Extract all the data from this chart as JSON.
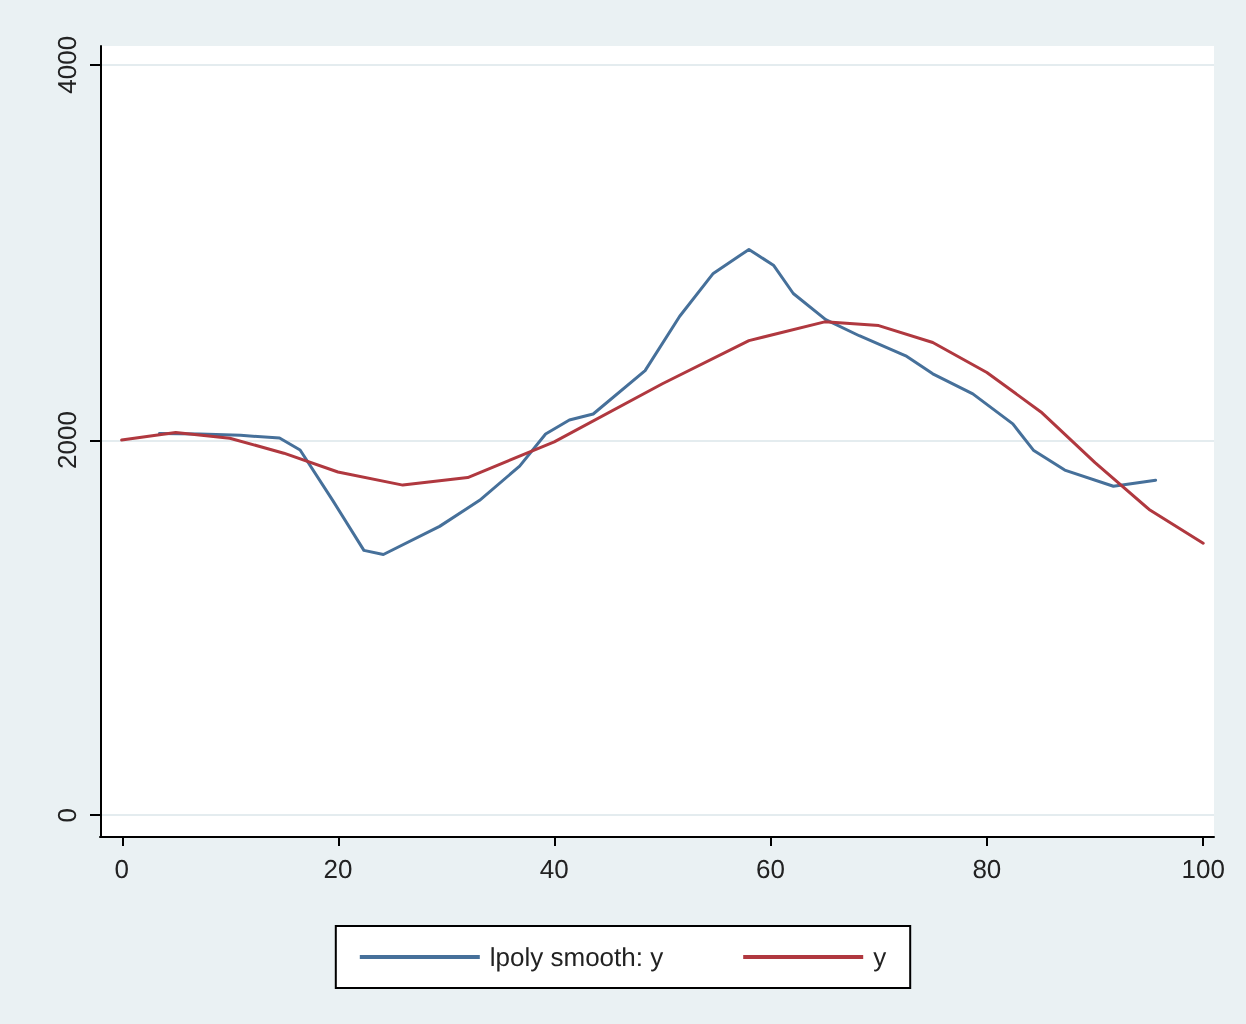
{
  "chart_data": {
    "type": "line",
    "xlim": [
      -2,
      101
    ],
    "xticks": [
      0,
      20,
      40,
      60,
      80,
      100
    ],
    "ylim": [
      -110,
      4100
    ],
    "yticks": [
      0,
      2000,
      4000
    ],
    "grid": "y",
    "legend": "bottom",
    "marker": "none",
    "line_style": "solid",
    "series": [
      {
        "name": "lpoly smooth: y",
        "color": "#46709a",
        "x": [
          3.5,
          7.2,
          11,
          14.6,
          16.5,
          19.5,
          22.4,
          24.2,
          29.4,
          33.1,
          36.8,
          39.2,
          41.4,
          43.6,
          48.4,
          51.6,
          54.7,
          58.0,
          60.3,
          62.1,
          65.1,
          68.2,
          72.5,
          75,
          78.7,
          82.4,
          84.3,
          87.2,
          91.7,
          95.6
        ],
        "values": [
          2035,
          2032,
          2025,
          2011,
          1947,
          1680,
          1412,
          1390,
          1540,
          1679,
          1861,
          2032,
          2107,
          2139,
          2370,
          2660,
          2888,
          3016,
          2930,
          2781,
          2642,
          2556,
          2449,
          2353,
          2246,
          2086,
          1946,
          1840,
          1754,
          1786
        ]
      },
      {
        "name": "y",
        "color": "#b0383f",
        "x": [
          0,
          5,
          10,
          15,
          20,
          26,
          32,
          40,
          50,
          58,
          65,
          70,
          75,
          80,
          85,
          90,
          95,
          100
        ],
        "values": [
          2000,
          2040,
          2010,
          1930,
          1830,
          1760,
          1800,
          1990,
          2300,
          2530,
          2630,
          2610,
          2520,
          2360,
          2150,
          1880,
          1630,
          1450
        ]
      }
    ]
  }
}
